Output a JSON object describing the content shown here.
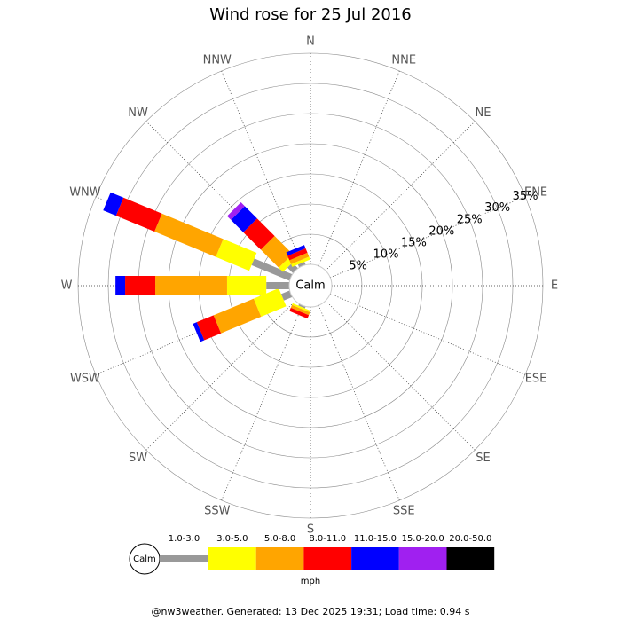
{
  "chart_data": {
    "type": "wind-rose",
    "title": "Wind rose for 25 Jul 2016",
    "calm_label": "Calm",
    "unit_label": "mph",
    "footer": "@nw3weather. Generated: 13 Dec 2025 19:31; Load time: 0.94 s",
    "categories": [
      "N",
      "NNE",
      "NE",
      "ENE",
      "E",
      "ESE",
      "SE",
      "SSE",
      "S",
      "SSW",
      "SW",
      "WSW",
      "W",
      "WNW",
      "NW",
      "NNW"
    ],
    "series": [
      {
        "name": "1.0-3.0",
        "color": "#999999",
        "values": [
          0,
          0,
          0,
          0,
          0,
          0,
          0,
          0,
          0,
          0.3,
          0,
          1.5,
          3.8,
          6.8,
          1.3,
          0.5
        ]
      },
      {
        "name": "3.0-5.0",
        "color": "#ffff00",
        "values": [
          0,
          0,
          0,
          0,
          0,
          0,
          0,
          0,
          0,
          0.3,
          0,
          4.5,
          6.5,
          6.0,
          1.0,
          0.5
        ]
      },
      {
        "name": "5.0-8.0",
        "color": "#ffa500",
        "values": [
          0,
          0,
          0,
          0,
          0,
          0,
          0,
          0,
          0,
          0.5,
          0,
          7.2,
          11.9,
          11.0,
          4.2,
          0.7
        ]
      },
      {
        "name": "8.0-11.0",
        "color": "#ff0000",
        "values": [
          0,
          0,
          0,
          0,
          0,
          0,
          0,
          0,
          0,
          0.6,
          0,
          3.0,
          5.0,
          6.9,
          4.1,
          0.8
        ]
      },
      {
        "name": "11.0-15.0",
        "color": "#0000ff",
        "values": [
          0,
          0,
          0,
          0,
          0,
          0,
          0,
          0,
          0,
          0,
          0,
          0.7,
          1.6,
          2.3,
          2.9,
          0.6
        ]
      },
      {
        "name": "15.0-20.0",
        "color": "#a020f0",
        "values": [
          0,
          0,
          0,
          0,
          0,
          0,
          0,
          0,
          0,
          0,
          0,
          0,
          0,
          0,
          0.9,
          0
        ]
      },
      {
        "name": "20.0-50.0",
        "color": "#000000",
        "values": [
          0,
          0,
          0,
          0,
          0,
          0,
          0,
          0,
          0,
          0,
          0,
          0,
          0,
          0,
          0,
          0
        ]
      }
    ],
    "rlim": [
      0,
      35
    ],
    "rticks": [
      {
        "value": 5,
        "label": "5%"
      },
      {
        "value": 10,
        "label": "10%"
      },
      {
        "value": 15,
        "label": "15%"
      },
      {
        "value": 20,
        "label": "20%"
      },
      {
        "value": 25,
        "label": "25%"
      },
      {
        "value": 30,
        "label": "30%"
      },
      {
        "value": 35,
        "label": "35%"
      }
    ],
    "grid": true
  }
}
